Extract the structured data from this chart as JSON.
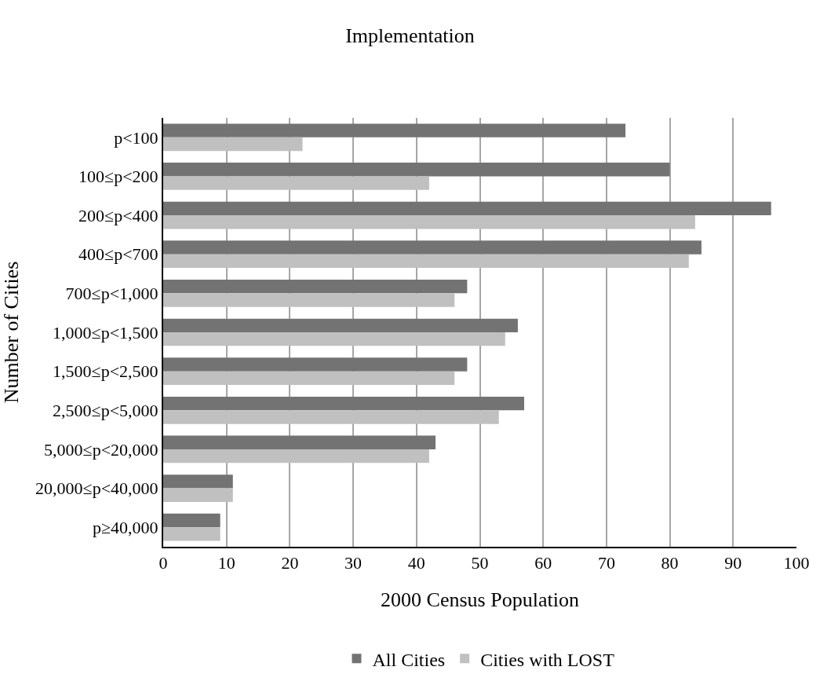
{
  "chart_data": {
    "type": "bar",
    "orientation": "horizontal",
    "title": "Implementation",
    "xlabel": "2000 Census Population",
    "ylabel": "Number of Cities",
    "categories": [
      "p<100",
      "100≤p<200",
      "200≤p<400",
      "400≤p<700",
      "700≤p<1,000",
      "1,000≤p<1,500",
      "1,500≤p<2,500",
      "2,500≤p<5,000",
      "5,000≤p<20,000",
      "20,000≤p<40,000",
      "p≥40,000"
    ],
    "series": [
      {
        "name": "All Cities",
        "color": "#737373",
        "values": [
          73,
          80,
          96,
          85,
          48,
          56,
          48,
          57,
          43,
          11,
          9
        ]
      },
      {
        "name": "Cities with LOST",
        "color": "#c0c0c0",
        "values": [
          22,
          42,
          84,
          83,
          46,
          54,
          46,
          53,
          42,
          11,
          9
        ]
      }
    ],
    "xlim": [
      0,
      100
    ],
    "xticks": [
      0,
      10,
      20,
      30,
      40,
      50,
      60,
      70,
      80,
      90,
      100
    ],
    "grid": "x",
    "legend": "bottom"
  }
}
